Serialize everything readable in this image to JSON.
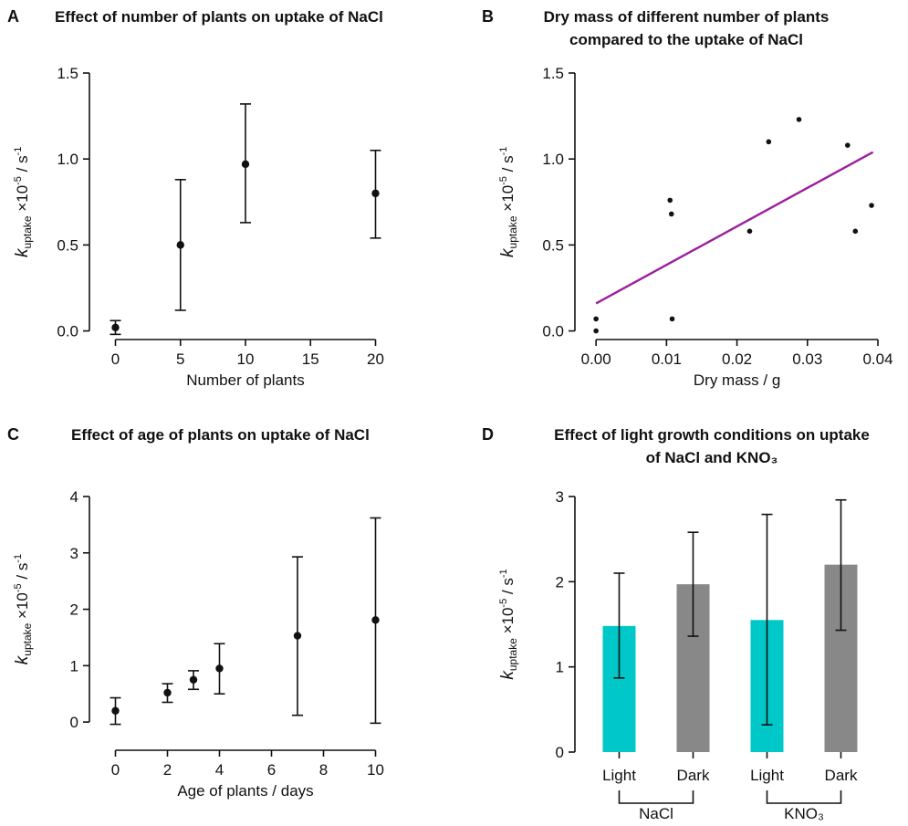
{
  "chart_data": [
    {
      "panel": "A",
      "type": "scatter",
      "title": "Effect of number of plants on uptake of NaCl",
      "xlabel": "Number of plants",
      "ylabel": {
        "sym": "k",
        "sub": "uptake",
        "rest": " ×10",
        "sup": "-5",
        "unit": " / s",
        "unitsup": "-1"
      },
      "xlim": [
        -2,
        22
      ],
      "ylim": [
        -0.05,
        1.5
      ],
      "xticks": [
        0,
        5,
        10,
        15,
        20
      ],
      "yticks": [
        0.0,
        0.5,
        1.0,
        1.5
      ],
      "ytick_labels": [
        "0.0",
        "0.5",
        "1.0",
        "1.5"
      ],
      "points": [
        {
          "x": 0,
          "y": 0.02,
          "lo": -0.02,
          "hi": 0.06
        },
        {
          "x": 5,
          "y": 0.5,
          "lo": 0.12,
          "hi": 0.88
        },
        {
          "x": 10,
          "y": 0.97,
          "lo": 0.63,
          "hi": 1.32
        },
        {
          "x": 20,
          "y": 0.8,
          "lo": 0.54,
          "hi": 1.05
        }
      ]
    },
    {
      "panel": "B",
      "type": "scatter",
      "title": [
        "Dry mass of different number of plants",
        "compared to the uptake of NaCl"
      ],
      "xlabel": "Dry mass / g",
      "ylabel": {
        "sym": "k",
        "sub": "uptake",
        "rest": " ×10",
        "sup": "-5",
        "unit": " / s",
        "unitsup": "-1"
      },
      "xlim": [
        -0.003,
        0.04
      ],
      "ylim": [
        -0.05,
        1.5
      ],
      "xticks": [
        0,
        0.01,
        0.02,
        0.03,
        0.04
      ],
      "xtick_labels": [
        "0.00",
        "0.01",
        "0.02",
        "0.03",
        "0.04"
      ],
      "yticks": [
        0.0,
        0.5,
        1.0,
        1.5
      ],
      "ytick_labels": [
        "0.0",
        "0.5",
        "1.0",
        "1.5"
      ],
      "points": [
        {
          "x": 0.0,
          "y": 0.07
        },
        {
          "x": 0.0,
          "y": 0.0
        },
        {
          "x": 0.0105,
          "y": 0.76
        },
        {
          "x": 0.0107,
          "y": 0.68
        },
        {
          "x": 0.0108,
          "y": 0.07
        },
        {
          "x": 0.0218,
          "y": 0.58
        },
        {
          "x": 0.0245,
          "y": 1.1
        },
        {
          "x": 0.0288,
          "y": 1.23
        },
        {
          "x": 0.0357,
          "y": 1.08
        },
        {
          "x": 0.0368,
          "y": 0.58
        },
        {
          "x": 0.0391,
          "y": 0.73
        }
      ],
      "fit_line": {
        "x": [
          0.0,
          0.0393
        ],
        "y": [
          0.16,
          1.04
        ],
        "color": "#9b1f9e"
      }
    },
    {
      "panel": "C",
      "type": "scatter",
      "title": "Effect of age of plants on uptake of NaCl",
      "xlabel": "Age of plants / days",
      "ylabel": {
        "sym": "k",
        "sub": "uptake",
        "rest": " ×10",
        "sup": "-5",
        "unit": " / s",
        "unitsup": "-1"
      },
      "xlim": [
        -1,
        11
      ],
      "ylim": [
        -0.5,
        4
      ],
      "xticks": [
        0,
        2,
        4,
        6,
        8,
        10
      ],
      "yticks": [
        0,
        1,
        2,
        3,
        4
      ],
      "points": [
        {
          "x": 0,
          "y": 0.2,
          "lo": -0.04,
          "hi": 0.43
        },
        {
          "x": 2,
          "y": 0.52,
          "lo": 0.35,
          "hi": 0.68
        },
        {
          "x": 3,
          "y": 0.75,
          "lo": 0.58,
          "hi": 0.91
        },
        {
          "x": 4,
          "y": 0.95,
          "lo": 0.5,
          "hi": 1.39
        },
        {
          "x": 7,
          "y": 1.53,
          "lo": 0.12,
          "hi": 2.93
        },
        {
          "x": 10,
          "y": 1.81,
          "lo": -0.02,
          "hi": 3.62
        }
      ]
    },
    {
      "panel": "D",
      "type": "bar",
      "title": [
        "Effect of light growth conditions on uptake",
        "of NaCl and KNO₃"
      ],
      "ylabel": {
        "sym": "k",
        "sub": "uptake",
        "rest": " ×10",
        "sup": "-5",
        "unit": " / s",
        "unitsup": "-1"
      },
      "ylim": [
        0,
        3
      ],
      "yticks": [
        0,
        1,
        2,
        3
      ],
      "categories": [
        "Light",
        "Dark",
        "Light",
        "Dark"
      ],
      "groups": [
        {
          "label": "NaCl",
          "span": [
            0,
            1
          ]
        },
        {
          "label": "KNO₃",
          "span": [
            2,
            3
          ]
        }
      ],
      "bars": [
        {
          "value": 1.48,
          "lo": 0.87,
          "hi": 2.1,
          "color": "#00c8c8"
        },
        {
          "value": 1.97,
          "lo": 1.36,
          "hi": 2.58,
          "color": "#888888"
        },
        {
          "value": 1.55,
          "lo": 0.32,
          "hi": 2.79,
          "color": "#00c8c8"
        },
        {
          "value": 2.2,
          "lo": 1.43,
          "hi": 2.96,
          "color": "#888888"
        }
      ]
    }
  ]
}
